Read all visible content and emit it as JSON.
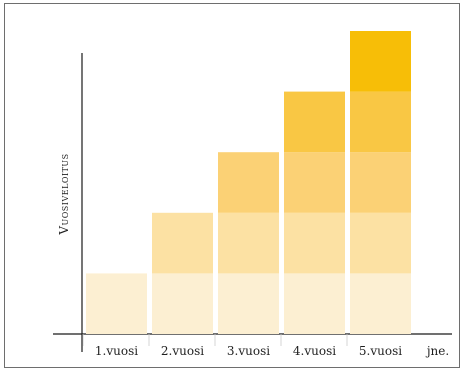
{
  "chart_data": {
    "type": "bar",
    "stacked": true,
    "ylabel": "Vuosiveloitus",
    "xlabel": "",
    "categories": [
      "1.vuosi",
      "2.vuosi",
      "3.vuosi",
      "4.vuosi",
      "5.vuosi"
    ],
    "trailing_label": "jne.",
    "series": [
      {
        "values": [
          1,
          1,
          1,
          1,
          1
        ],
        "color": "#FCEFD2"
      },
      {
        "values": [
          0,
          1,
          1,
          1,
          1
        ],
        "color": "#FCE1A3"
      },
      {
        "values": [
          0,
          0,
          1,
          1,
          1
        ],
        "color": "#FBD175"
      },
      {
        "values": [
          0,
          0,
          0,
          1,
          1
        ],
        "color": "#F9C744"
      },
      {
        "values": [
          0,
          0,
          0,
          0,
          1
        ],
        "color": "#F7BE07"
      }
    ],
    "ylim": [
      0,
      5
    ],
    "grid": false,
    "legend": "none"
  }
}
